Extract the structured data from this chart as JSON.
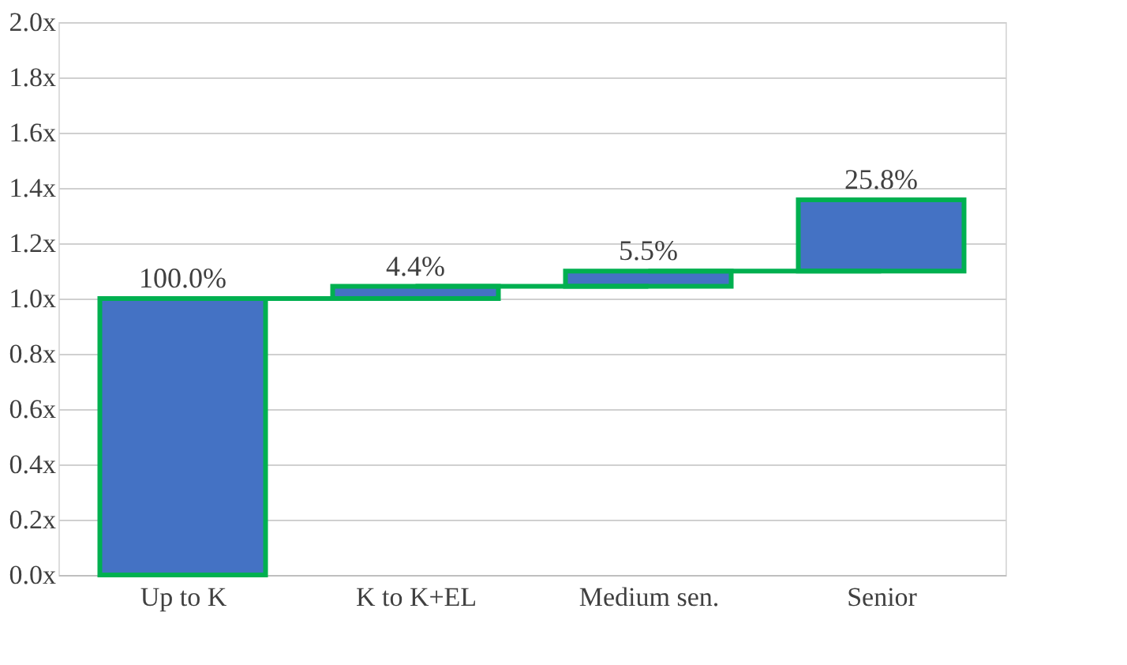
{
  "chart_data": {
    "type": "bar",
    "categories": [
      "Up to K",
      "K to K+EL",
      "Medium sen.",
      "Senior"
    ],
    "values": [
      1.0,
      0.044,
      0.055,
      0.258
    ],
    "base": [
      0,
      1.0,
      1.044,
      1.099
    ],
    "value_labels": [
      "100.0%",
      "4.4%",
      "5.5%",
      "25.8%"
    ],
    "color": "#4472c4",
    "ylim": [
      0,
      2.0
    ],
    "yticks": [
      {
        "value": 0,
        "label": "0.0x"
      },
      {
        "value": 0.2,
        "label": "0.2x"
      },
      {
        "value": 0.4,
        "label": "0.4x"
      },
      {
        "value": 0.6,
        "label": "0.6x"
      },
      {
        "value": 0.8,
        "label": "0.8x"
      },
      {
        "value": 1.0,
        "label": "1.0x"
      },
      {
        "value": 1.2,
        "label": "1.2x"
      },
      {
        "value": 1.4,
        "label": "1.4x"
      },
      {
        "value": 1.6,
        "label": "1.6x"
      },
      {
        "value": 1.8,
        "label": "1.8x"
      },
      {
        "value": 2.0,
        "label": "2.0x"
      }
    ],
    "grid": "y"
  }
}
